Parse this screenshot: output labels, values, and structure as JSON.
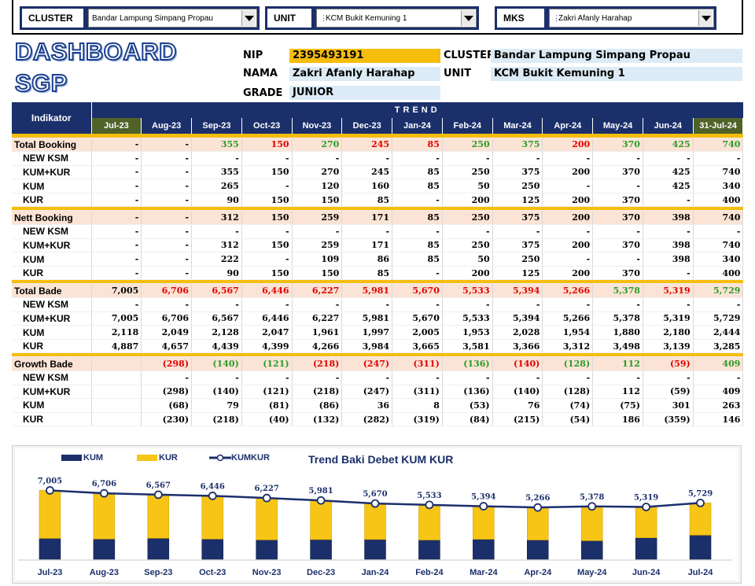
{
  "filters": {
    "cluster": {
      "label": "CLUSTER",
      "value": "Bandar Lampung Simpang Propau"
    },
    "unit": {
      "label": "UNIT",
      "value": "KCM Bukit Kemuning 1"
    },
    "mks": {
      "label": "MKS",
      "value": "Zakri Afanly Harahap"
    }
  },
  "title": {
    "line1": "DASHBOARD",
    "line2": "SGP"
  },
  "info": {
    "nip_label": "NIP",
    "nip": "2395493191",
    "nama_label": "NAMA",
    "nama": "Zakri Afanly Harahap",
    "grade_label": "GRADE",
    "grade": "JUNIOR",
    "cluster_label": "CLUSTER",
    "cluster": "Bandar Lampung Simpang Propau",
    "unit_label": "UNIT",
    "unit": "KCM Bukit Kemuning 1"
  },
  "table": {
    "indikator_label": "Indikator",
    "trend_label": "TREND",
    "months": [
      "Jul-23",
      "Aug-23",
      "Sep-23",
      "Oct-23",
      "Nov-23",
      "Dec-23",
      "Jan-24",
      "Feb-24",
      "Mar-24",
      "Apr-24",
      "May-24",
      "Jun-24",
      "31-Jul-24"
    ],
    "sections": [
      {
        "name": "Total Booking",
        "values": [
          "-",
          "-",
          "355",
          "150",
          "270",
          "245",
          "85",
          "250",
          "375",
          "200",
          "370",
          "425",
          "740"
        ],
        "colors": [
          "",
          "",
          "green",
          "red",
          "green",
          "red",
          "red",
          "green",
          "green",
          "red",
          "green",
          "green",
          "green"
        ],
        "rows": [
          {
            "name": "NEW KSM",
            "values": [
              "-",
              "-",
              "-",
              "-",
              "-",
              "-",
              "-",
              "-",
              "-",
              "-",
              "-",
              "-",
              "-"
            ]
          },
          {
            "name": "KUM+KUR",
            "values": [
              "-",
              "-",
              "355",
              "150",
              "270",
              "245",
              "85",
              "250",
              "375",
              "200",
              "370",
              "425",
              "740"
            ]
          },
          {
            "name": "KUM",
            "values": [
              "-",
              "-",
              "265",
              "-",
              "120",
              "160",
              "85",
              "50",
              "250",
              "-",
              "-",
              "425",
              "340"
            ]
          },
          {
            "name": "KUR",
            "values": [
              "-",
              "-",
              "90",
              "150",
              "150",
              "85",
              "-",
              "200",
              "125",
              "200",
              "370",
              "-",
              "400"
            ]
          }
        ]
      },
      {
        "name": "Nett Booking",
        "values": [
          "-",
          "-",
          "312",
          "150",
          "259",
          "171",
          "85",
          "250",
          "375",
          "200",
          "370",
          "398",
          "740"
        ],
        "colors": [
          "",
          "",
          "",
          "",
          "",
          "",
          "",
          "",
          "",
          "",
          "",
          "",
          ""
        ],
        "rows": [
          {
            "name": "NEW KSM",
            "values": [
              "-",
              "-",
              "-",
              "-",
              "-",
              "-",
              "-",
              "-",
              "-",
              "-",
              "-",
              "-",
              "-"
            ]
          },
          {
            "name": "KUM+KUR",
            "values": [
              "-",
              "-",
              "312",
              "150",
              "259",
              "171",
              "85",
              "250",
              "375",
              "200",
              "370",
              "398",
              "740"
            ]
          },
          {
            "name": "KUM",
            "values": [
              "-",
              "-",
              "222",
              "-",
              "109",
              "86",
              "85",
              "50",
              "250",
              "-",
              "-",
              "398",
              "340"
            ]
          },
          {
            "name": "KUR",
            "values": [
              "-",
              "-",
              "90",
              "150",
              "150",
              "85",
              "-",
              "200",
              "125",
              "200",
              "370",
              "-",
              "400"
            ]
          }
        ]
      },
      {
        "name": "Total Bade",
        "values": [
          "7,005",
          "6,706",
          "6,567",
          "6,446",
          "6,227",
          "5,981",
          "5,670",
          "5,533",
          "5,394",
          "5,266",
          "5,378",
          "5,319",
          "5,729"
        ],
        "colors": [
          "",
          "red",
          "red",
          "red",
          "red",
          "red",
          "red",
          "red",
          "red",
          "red",
          "green",
          "red",
          "green"
        ],
        "rows": [
          {
            "name": "NEW KSM",
            "values": [
              "-",
              "-",
              "-",
              "-",
              "-",
              "-",
              "-",
              "-",
              "-",
              "-",
              "-",
              "-",
              "-"
            ]
          },
          {
            "name": "KUM+KUR",
            "values": [
              "7,005",
              "6,706",
              "6,567",
              "6,446",
              "6,227",
              "5,981",
              "5,670",
              "5,533",
              "5,394",
              "5,266",
              "5,378",
              "5,319",
              "5,729"
            ]
          },
          {
            "name": "KUM",
            "values": [
              "2,118",
              "2,049",
              "2,128",
              "2,047",
              "1,961",
              "1,997",
              "2,005",
              "1,953",
              "2,028",
              "1,954",
              "1,880",
              "2,180",
              "2,444"
            ]
          },
          {
            "name": "KUR",
            "values": [
              "4,887",
              "4,657",
              "4,439",
              "4,399",
              "4,266",
              "3,984",
              "3,665",
              "3,581",
              "3,366",
              "3,312",
              "3,498",
              "3,139",
              "3,285"
            ]
          }
        ]
      },
      {
        "name": "Growth Bade",
        "values": [
          "",
          "(298)",
          "(140)",
          "(121)",
          "(218)",
          "(247)",
          "(311)",
          "(136)",
          "(140)",
          "(128)",
          "112",
          "(59)",
          "409"
        ],
        "colors": [
          "",
          "red",
          "green",
          "green",
          "red",
          "red",
          "red",
          "green",
          "red",
          "green",
          "green",
          "red",
          "green"
        ],
        "rows": [
          {
            "name": "NEW KSM",
            "values": [
              "",
              "-",
              "-",
              "-",
              "-",
              "-",
              "-",
              "-",
              "-",
              "-",
              "-",
              "-",
              "-"
            ]
          },
          {
            "name": "KUM+KUR",
            "values": [
              "",
              "(298)",
              "(140)",
              "(121)",
              "(218)",
              "(247)",
              "(311)",
              "(136)",
              "(140)",
              "(128)",
              "112",
              "(59)",
              "409"
            ]
          },
          {
            "name": "KUM",
            "values": [
              "",
              "(68)",
              "79",
              "(81)",
              "(86)",
              "36",
              "8",
              "(53)",
              "76",
              "(74)",
              "(75)",
              "301",
              "263"
            ]
          },
          {
            "name": "KUR",
            "values": [
              "",
              "(230)",
              "(218)",
              "(40)",
              "(132)",
              "(282)",
              "(319)",
              "(84)",
              "(215)",
              "(54)",
              "186",
              "(359)",
              "146"
            ]
          }
        ]
      }
    ]
  },
  "chart_data": {
    "type": "bar",
    "title": "Trend Baki Debet KUM KUR",
    "categories": [
      "Jul-23",
      "Aug-23",
      "Sep-23",
      "Oct-23",
      "Nov-23",
      "Dec-23",
      "Jan-24",
      "Feb-24",
      "Mar-24",
      "Apr-24",
      "May-24",
      "Jun-24",
      "Jul-24"
    ],
    "series": [
      {
        "name": "KUM",
        "type": "stacked-bar",
        "color": "#1b2f6b",
        "values": [
          2118,
          2049,
          2128,
          2047,
          1961,
          1997,
          2005,
          1953,
          2028,
          1954,
          1880,
          2180,
          2444
        ]
      },
      {
        "name": "KUR",
        "type": "stacked-bar",
        "color": "#f6c516",
        "values": [
          4887,
          4657,
          4439,
          4399,
          4266,
          3984,
          3665,
          3581,
          3366,
          3312,
          3498,
          3139,
          3285
        ]
      },
      {
        "name": "KUMKUR",
        "type": "line",
        "color": "#1b2f6b",
        "values": [
          7005,
          6706,
          6567,
          6446,
          6227,
          5981,
          5670,
          5533,
          5394,
          5266,
          5378,
          5319,
          5729
        ]
      }
    ],
    "data_labels": [
      "7,005",
      "6,706",
      "6,567",
      "6,446",
      "6,227",
      "5,981",
      "5,670",
      "5,533",
      "5,394",
      "5,266",
      "5,378",
      "5,319",
      "5,729"
    ],
    "legend": "top-left",
    "grid": false
  }
}
